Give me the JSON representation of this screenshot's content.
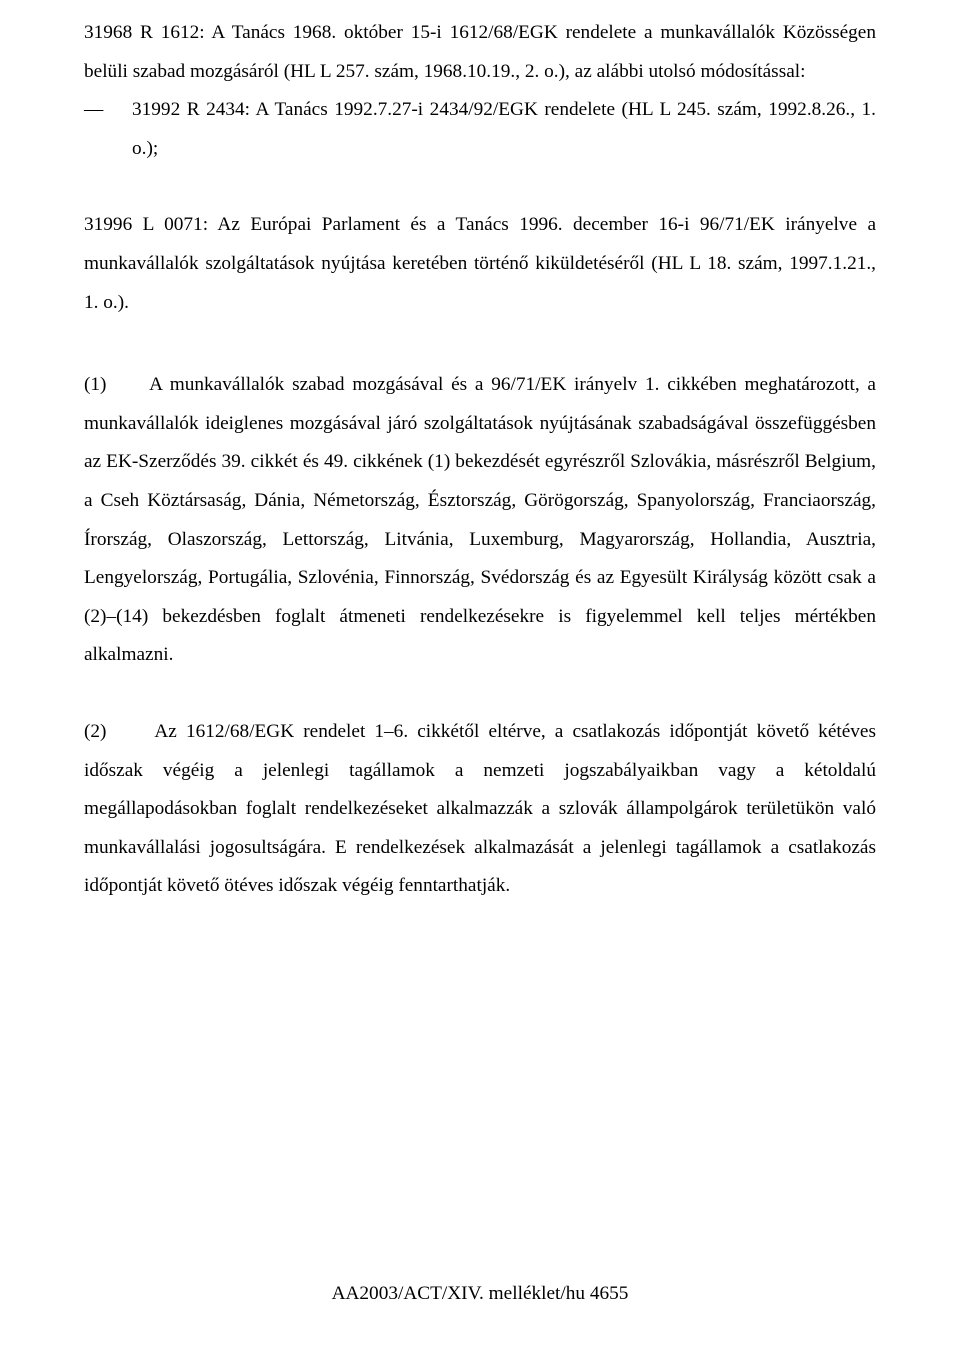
{
  "p1": "31968 R 1612: A Tanács 1968. október 15-i 1612/68/EGK rendelete a munkavállalók Közösségen belüli szabad mozgásáról (HL L 257. szám, 1968.10.19., 2. o.), az alábbi utolsó módosítással:",
  "dash": "—",
  "p2": "31992 R 2434: A Tanács 1992.7.27-i 2434/92/EGK rendelete (HL L 245. szám, 1992.8.26., 1. o.);",
  "p3": "31996 L 0071: Az Európai Parlament és a Tanács 1996. december 16-i 96/71/EK irányelve a munkavállalók szolgáltatások nyújtása keretében történő kiküldetéséről (HL L 18. szám, 1997.1.21., 1. o.).",
  "p4_no": "(1)",
  "p4": "A munkavállalók szabad mozgásával és a 96/71/EK irányelv 1. cikkében meghatározott, a munkavállalók ideiglenes mozgásával járó szolgáltatások nyújtásának szabadságával összefüggésben az EK-Szerződés 39. cikkét és 49. cikkének (1) bekezdését egyrészről Szlovákia, másrészről Belgium, a Cseh Köztársaság, Dánia, Németország, Észtország, Görögország, Spanyolország, Franciaország, Írország, Olaszország, Lettország, Litvánia, Luxemburg, Magyarország, Hollandia, Ausztria, Lengyelország, Portugália, Szlovénia, Finnország, Svédország és az Egyesült Királyság között csak a (2)–(14) bekezdésben foglalt átmeneti rendelkezésekre is figyelemmel kell teljes mértékben alkalmazni.",
  "p5_no": "(2)",
  "p5": "Az 1612/68/EGK rendelet 1–6. cikkétől eltérve, a csatlakozás időpontját követő kétéves időszak végéig a jelenlegi tagállamok a nemzeti jogszabályaikban vagy a kétoldalú megállapodásokban foglalt rendelkezéseket alkalmazzák a szlovák állampolgárok területükön való munkavállalási jogosultságára. E rendelkezések alkalmazását a jelenlegi tagállamok a csatlakozás időpontját követő ötéves időszak végéig fenntarthatják.",
  "footer": "AA2003/ACT/XIV. melléklet/hu 4655"
}
